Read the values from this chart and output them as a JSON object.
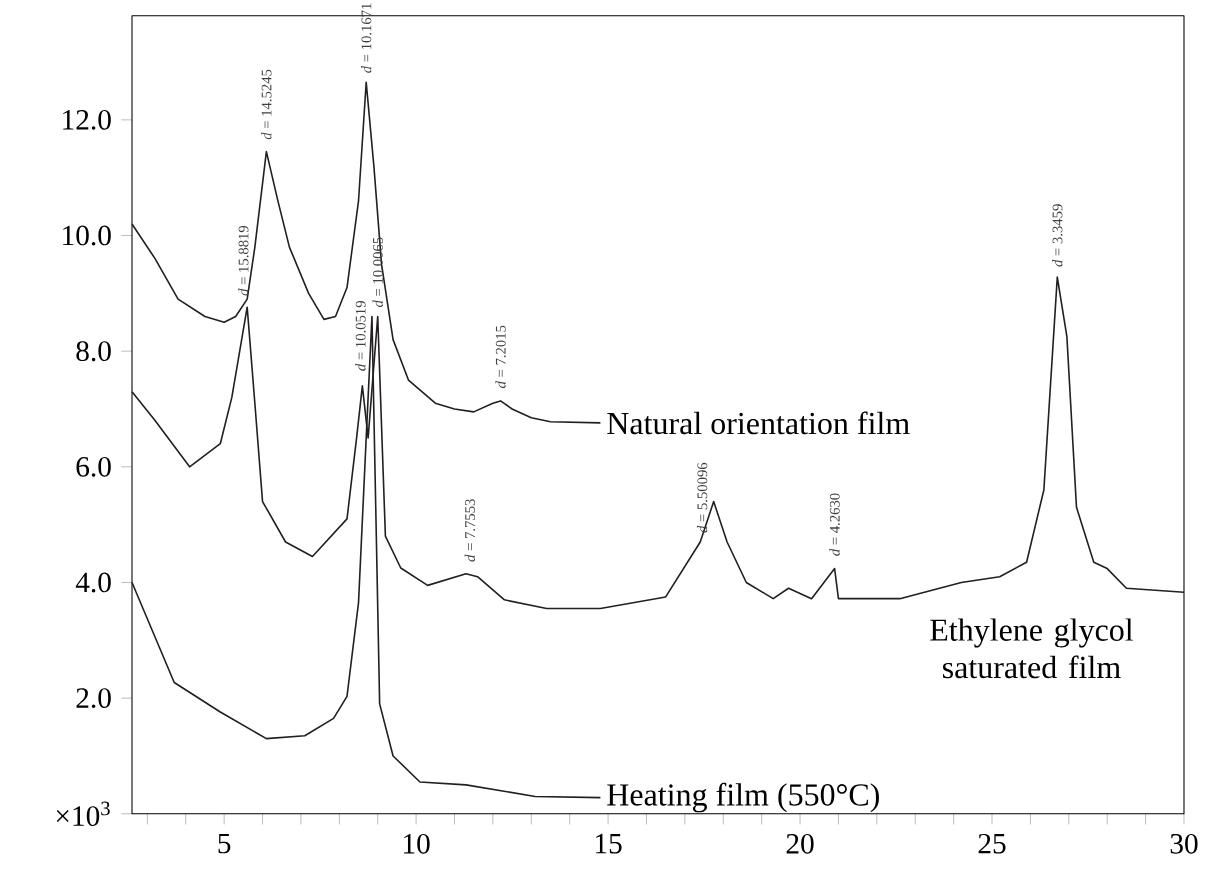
{
  "chart_data": {
    "type": "line",
    "xlim": [
      2.6,
      30
    ],
    "ylim": [
      0,
      13.8
    ],
    "xticks": [
      {
        "value": 3,
        "label": null
      },
      {
        "value": 4,
        "label": null
      },
      5,
      {
        "value": 6,
        "label": null
      },
      {
        "value": 7,
        "label": null
      },
      {
        "value": 8,
        "label": null
      },
      {
        "value": 9,
        "label": null
      },
      10,
      {
        "value": 11,
        "label": null
      },
      {
        "value": 12,
        "label": null
      },
      {
        "value": 13,
        "label": null
      },
      {
        "value": 14,
        "label": null
      },
      15,
      {
        "value": 16,
        "label": null
      },
      {
        "value": 17,
        "label": null
      },
      {
        "value": 18,
        "label": null
      },
      {
        "value": 19,
        "label": null
      },
      20,
      {
        "value": 21,
        "label": null
      },
      {
        "value": 22,
        "label": null
      },
      {
        "value": 23,
        "label": null
      },
      {
        "value": 24,
        "label": null
      },
      25,
      {
        "value": 26,
        "label": null
      },
      {
        "value": 27,
        "label": null
      },
      {
        "value": 28,
        "label": null
      },
      {
        "value": 29,
        "label": null
      },
      30
    ],
    "yticks": [
      {
        "value": 0,
        "label": "×10$^{3}$"
      },
      {
        "value": 2,
        "label": "2.0"
      },
      {
        "value": 4,
        "label": "4.0"
      },
      {
        "value": 6,
        "label": "6.0"
      },
      {
        "value": 8,
        "label": "8.0"
      },
      {
        "value": 10,
        "label": "10.0"
      },
      {
        "value": 12,
        "label": "12.0"
      }
    ],
    "grid": false,
    "legend": false,
    "marker": "none",
    "line_style": "solid",
    "series": [
      {
        "name": "Natural orientation film",
        "color": "#231f20",
        "x": [
          2.6,
          3.2,
          3.8,
          4.5,
          5.0,
          5.3,
          5.6,
          5.8,
          6.1,
          6.4,
          6.7,
          7.2,
          7.6,
          7.9,
          8.2,
          8.5,
          8.7,
          8.9,
          9.1,
          9.4,
          9.8,
          10.5,
          11.0,
          11.5,
          12.0,
          12.2,
          12.5,
          13.0,
          13.5,
          14.8
        ],
        "values": [
          10.2,
          9.6,
          8.9,
          8.6,
          8.5,
          8.6,
          8.9,
          9.8,
          11.45,
          10.6,
          9.8,
          9.0,
          8.55,
          8.6,
          9.1,
          10.6,
          12.65,
          11.2,
          9.5,
          8.2,
          7.5,
          7.1,
          7.0,
          6.95,
          7.1,
          7.14,
          7.0,
          6.85,
          6.78,
          6.76
        ]
      },
      {
        "name": "Ethylene glycol saturated film",
        "color": "#231f20",
        "x": [
          2.6,
          3.2,
          4.1,
          4.9,
          5.2,
          5.6,
          5.8,
          6.0,
          6.6,
          7.3,
          8.2,
          8.45,
          8.6,
          8.75,
          9.0,
          9.2,
          9.6,
          10.3,
          11.3,
          11.6,
          12.3,
          13.4,
          14.8,
          16.5,
          17.4,
          17.75,
          18.1,
          18.6,
          19.3,
          19.7,
          20.3,
          20.9,
          21.0,
          22.6,
          24.2,
          25.2,
          25.9,
          26.35,
          26.7,
          26.95,
          27.2,
          27.65,
          28.0,
          28.5,
          30
        ],
        "values": [
          7.3,
          6.8,
          6.0,
          6.4,
          7.2,
          8.76,
          7.1,
          5.4,
          4.7,
          4.45,
          5.1,
          6.5,
          7.4,
          6.5,
          8.6,
          4.8,
          4.25,
          3.95,
          4.15,
          4.1,
          3.7,
          3.55,
          3.55,
          3.75,
          4.7,
          5.4,
          4.7,
          4.0,
          3.72,
          3.9,
          3.72,
          4.24,
          3.72,
          3.72,
          4.0,
          4.1,
          4.35,
          5.6,
          9.28,
          8.25,
          5.3,
          4.35,
          4.24,
          3.9,
          3.83
        ]
      },
      {
        "name": "Heating film (550°C)",
        "color": "#231f20",
        "x": [
          2.6,
          3.7,
          4.9,
          6.1,
          7.1,
          7.85,
          8.2,
          8.5,
          8.7,
          8.85,
          9.05,
          9.4,
          10.1,
          11.3,
          13.1,
          14.8
        ],
        "values": [
          4.0,
          2.27,
          1.76,
          1.3,
          1.35,
          1.65,
          2.03,
          3.65,
          6.5,
          8.6,
          1.9,
          1.0,
          0.55,
          0.5,
          0.3,
          0.28
        ]
      }
    ],
    "annotations": [
      {
        "text": "*d* = 15.8819",
        "x": 5.5,
        "y": 8.9
      },
      {
        "text": "*d* = 14.5245",
        "x": 6.1,
        "y": 11.6
      },
      {
        "text": "*d* = 10.1671",
        "x": 8.7,
        "y": 12.75
      },
      {
        "text": "*d* = 10.0519",
        "x": 8.55,
        "y": 7.6
      },
      {
        "text": "*d* = 10.0065",
        "x": 9.0,
        "y": 8.7
      },
      {
        "text": "*d* = 7.2015",
        "x": 12.2,
        "y": 7.3
      },
      {
        "text": "*d* = 7.7553",
        "x": 11.4,
        "y": 4.3
      },
      {
        "text": "*d* = 5.50096",
        "x": 17.45,
        "y": 4.8
      },
      {
        "text": "*d* = 4.2630",
        "x": 20.9,
        "y": 4.4
      },
      {
        "text": "*d* = 3.3459",
        "x": 26.7,
        "y": 9.4
      }
    ]
  }
}
